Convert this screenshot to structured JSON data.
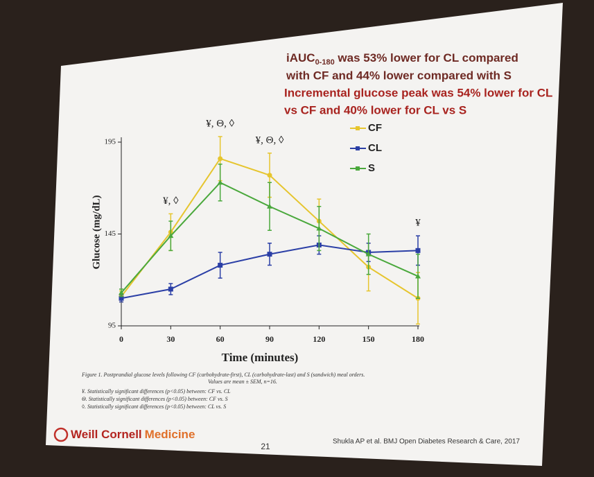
{
  "slide": {
    "headline": {
      "prefix": "iAUC",
      "subscript": "0-180",
      "lines": [
        " was 53% lower for CL compared",
        "with CF and 44% lower compared with S",
        "Incremental glucose peak was 54% lower for CL",
        "vs CF and 40% lower for CL vs S"
      ]
    },
    "caption": [
      "Figure 1. Postprandial glucose levels following CF (carbohydrate-first), CL (carbohydrate-last) and S (sandwich) meal orders.",
      "Values are mean ± SEM, n=16."
    ],
    "footnotes": [
      "¥. Statistically significant differences (p<0.05) between: CF vs. CL",
      "Θ. Statistically significant differences (p<0.05) between: CF vs. S",
      "◊. Statistically significant differences (p<0.05) between: CL vs. S"
    ],
    "logo": [
      "Weill Cornell",
      "Medicine"
    ],
    "page_number": "21",
    "citation": "Shukla AP et al. BMJ Open Diabetes Research & Care, 2017"
  },
  "chart_data": {
    "type": "line",
    "x_label": "Time (minutes)",
    "y_label": "Glucose (mg/dL)",
    "x": [
      0,
      30,
      60,
      90,
      120,
      150,
      180
    ],
    "xlim": [
      0,
      180
    ],
    "xticks": [
      0,
      30,
      60,
      90,
      120,
      150,
      180
    ],
    "ylim": [
      95,
      195
    ],
    "yticks": [
      95,
      145,
      195
    ],
    "legend": "upper right",
    "series": [
      {
        "name": "CF",
        "color": "#e6c52e",
        "values": [
          111,
          146,
          186,
          177,
          152,
          127,
          110
        ],
        "errors": [
          3,
          10,
          12,
          12,
          12,
          13,
          14
        ]
      },
      {
        "name": "CL",
        "color": "#2b3fa6",
        "values": [
          110,
          115,
          128,
          134,
          139,
          135,
          136
        ],
        "errors": [
          2,
          3,
          7,
          6,
          5,
          5,
          8
        ]
      },
      {
        "name": "S",
        "color": "#4aa83c",
        "values": [
          113,
          144,
          173,
          160,
          148,
          134,
          122
        ],
        "errors": [
          2,
          8,
          10,
          13,
          12,
          11,
          12
        ]
      }
    ],
    "annotations": [
      {
        "x": 30,
        "text": "¥, ◊"
      },
      {
        "x": 60,
        "text": "¥, Θ, ◊"
      },
      {
        "x": 90,
        "text": "¥, Θ, ◊"
      },
      {
        "x": 180,
        "text": "¥"
      }
    ]
  }
}
